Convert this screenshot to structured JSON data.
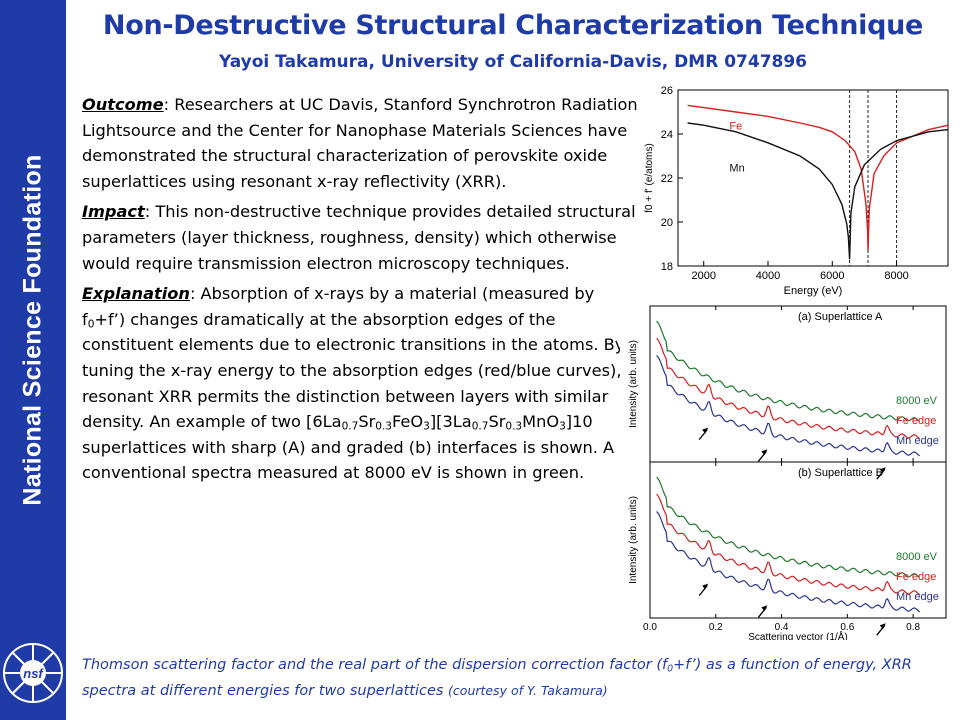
{
  "sidebar": {
    "text": "National Science Foundation",
    "logo_text": "nsf"
  },
  "header": {
    "title": "Non-Destructive Structural Characterization Technique",
    "subtitle": "Yayoi Takamura, University of California-Davis, DMR 0747896"
  },
  "body": {
    "outcome_label": "Outcome",
    "outcome_text": ": Researchers at UC Davis, Stanford Synchrotron Radiation Lightsource and  the Center for Nanophase Materials Sciences have demonstrated the structural characterization of perovskite oxide superlattices using resonant x-ray reflectivity (XRR).",
    "impact_label": "Impact",
    "impact_text": ": This non-destructive technique provides detailed structural parameters (layer thickness, roughness, density) which otherwise would require transmission electron microscopy techniques.",
    "explanation_label": "Explanation",
    "expl_1": ": Absorption of x-rays by a material (measured by f",
    "expl_sub0": "0",
    "expl_2": "+f’) changes dramatically at the absorption edges of the constituent elements due to electronic transitions in the atoms. By tuning the x-ray energy to the absorption edges (red/blue curves), resonant XRR permits the distinction between layers with similar density. An example of two [6La",
    "expl_sub1": "0.7",
    "expl_3": "Sr",
    "expl_sub2": "0.3",
    "expl_4": "FeO",
    "expl_sub3": "3",
    "expl_5": "][3La",
    "expl_sub4": "0.7",
    "expl_6": "Sr",
    "expl_sub5": "0.3",
    "expl_7": "MnO",
    "expl_sub6": "3",
    "expl_8": "]10 superlattices with sharp (A) and graded (b) interfaces is shown. A conventional spectra measured at 8000 eV is shown in green."
  },
  "caption": {
    "part1": "Thomson scattering factor and the real part of the dispersion correction factor (f",
    "sub0": "0",
    "part2": "+f’) as a function of energy, XRR spectra at different energies for two superlattices ",
    "small": "(courtesy of Y. Takamura)"
  },
  "colors": {
    "nsf_blue": "#1f3ba8",
    "fe_red": "#d42020",
    "mn_black": "#111111",
    "mn_blue": "#2b3590",
    "green_8000": "#1e7a2e"
  },
  "chart_data": [
    {
      "type": "line",
      "title": "",
      "xlabel": "Energy (eV)",
      "ylabel": "f0 + f' (e/atoms)",
      "xlim": [
        1200,
        9600
      ],
      "ylim": [
        18,
        26
      ],
      "x_ticks": [
        "2000",
        "4000",
        "6000",
        "8000"
      ],
      "y_ticks": [
        "18",
        "20",
        "22",
        "24",
        "26"
      ],
      "vlines_dashed": [
        6539,
        7112,
        8000
      ],
      "series": [
        {
          "name": "Fe",
          "color": "#d42020",
          "x": [
            1500,
            2000,
            3000,
            4000,
            5000,
            5600,
            6000,
            6400,
            6700,
            6900,
            7050,
            7100,
            7112,
            7150,
            7300,
            7600,
            8000,
            9000,
            9600
          ],
          "y": [
            25.3,
            25.2,
            25.0,
            24.8,
            24.5,
            24.3,
            24.1,
            23.7,
            23.2,
            22.4,
            20.8,
            19.6,
            18.7,
            20.6,
            22.2,
            23.0,
            23.6,
            24.2,
            24.4
          ]
        },
        {
          "name": "Mn",
          "color": "#111111",
          "x": [
            1500,
            2000,
            3000,
            4000,
            5000,
            5600,
            6000,
            6300,
            6450,
            6500,
            6539,
            6580,
            6700,
            7000,
            7500,
            8000,
            9000,
            9600
          ],
          "y": [
            24.5,
            24.4,
            24.1,
            23.6,
            23.0,
            22.4,
            21.7,
            20.8,
            19.9,
            19.3,
            18.3,
            20.4,
            21.6,
            22.6,
            23.3,
            23.7,
            24.1,
            24.2
          ]
        }
      ]
    },
    {
      "type": "line",
      "panel": "(a) Superlattice A",
      "xlabel": "",
      "ylabel": "Intensity (arb. units)",
      "xlim": [
        0,
        0.9
      ],
      "x_ticks": [
        "0.0",
        "0.2",
        "0.4",
        "0.6",
        "0.8"
      ],
      "series": [
        {
          "name": "8000 eV",
          "color": "#1e7a2e",
          "offset": 0
        },
        {
          "name": "Fe edge",
          "color": "#d42020",
          "offset": 1
        },
        {
          "name": "Mn edge",
          "color": "#2b3590",
          "offset": 2
        }
      ],
      "arrows_x": [
        0.18,
        0.36,
        0.72
      ]
    },
    {
      "type": "line",
      "panel": "(b) Superlattice B",
      "xlabel": "Scattering vector (1/Å)",
      "ylabel": "Intensity (arb. units)",
      "xlim": [
        0,
        0.9
      ],
      "x_ticks": [
        "0.0",
        "0.2",
        "0.4",
        "0.6",
        "0.8"
      ],
      "series": [
        {
          "name": "8000 eV",
          "color": "#1e7a2e",
          "offset": 0
        },
        {
          "name": "Fe edge",
          "color": "#d42020",
          "offset": 1
        },
        {
          "name": "Mn edge",
          "color": "#2b3590",
          "offset": 2
        }
      ],
      "arrows_x": [
        0.18,
        0.36,
        0.72
      ]
    }
  ]
}
